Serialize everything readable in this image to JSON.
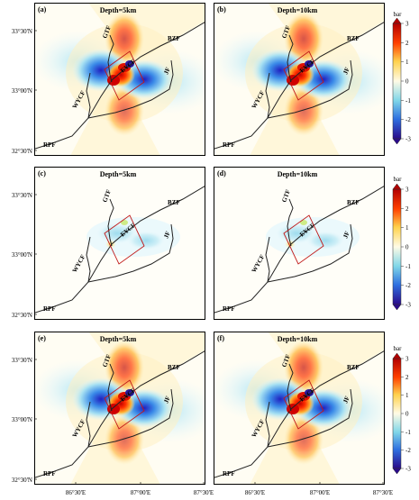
{
  "panels": [
    {
      "letter": "(a)",
      "depth": "Depth=5km",
      "type": "strong",
      "box": true,
      "colorbar": true
    },
    {
      "letter": "(b)",
      "depth": "Depth=10km",
      "type": "strong",
      "box": true,
      "colorbar": false
    },
    {
      "letter": "(c)",
      "depth": "Depth=5km",
      "type": "weak",
      "box": true,
      "colorbar": true
    },
    {
      "letter": "(d)",
      "depth": "Depth=10km",
      "type": "weak",
      "box": true,
      "colorbar": false
    },
    {
      "letter": "(e)",
      "depth": "Depth=5km",
      "type": "strong",
      "box": true,
      "colorbar": true
    },
    {
      "letter": "(f)",
      "depth": "Depth=10km",
      "type": "strong",
      "box": true,
      "colorbar": false
    }
  ],
  "faults": [
    "GTF",
    "BZF",
    "EYCF",
    "JF",
    "WYCF",
    "RPF"
  ],
  "latitudes": [
    "33°30'N",
    "33°00'N",
    "32°30'N"
  ],
  "longitudes": [
    "86°30'E",
    "87°00'E",
    "87°30'E"
  ],
  "colorbar": {
    "unit": "bar",
    "ticks": [
      "3",
      "2",
      "1",
      "0",
      "-1",
      "-2",
      "-3"
    ],
    "colors": [
      "#b30000",
      "#ff4000",
      "#ffd24d",
      "#fffbe6",
      "#7fd6e8",
      "#2e6fe0",
      "#2a0a8a"
    ]
  }
}
